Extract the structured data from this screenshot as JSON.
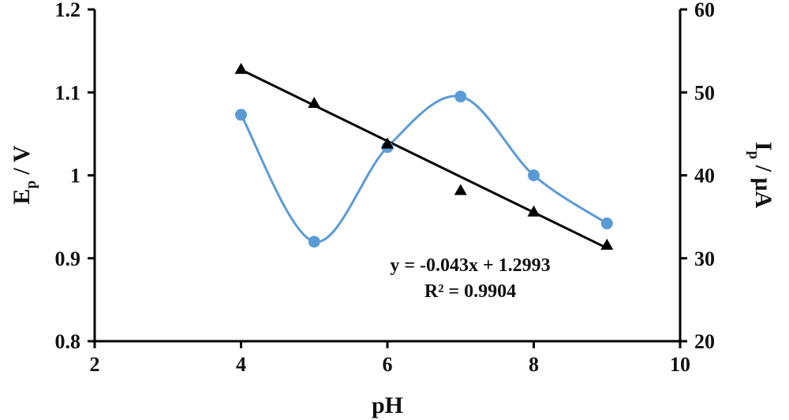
{
  "chart_data": {
    "type": "line",
    "xlabel": "pH",
    "ylabel_main": "E",
    "ylabel_sub": "p",
    "ylabel_unit": " / V",
    "y2label_main": "I",
    "y2label_sub": "p",
    "y2label_unit": " / μA",
    "xlim": [
      2,
      10
    ],
    "ylim": [
      0.8,
      1.2
    ],
    "y2lim": [
      20,
      60
    ],
    "x_ticks": [
      "2",
      "4",
      "6",
      "8",
      "10"
    ],
    "y_ticks": [
      "0.8",
      "0.9",
      "1",
      "1.1",
      "1.2"
    ],
    "y2_ticks": [
      "20",
      "30",
      "40",
      "50",
      "60"
    ],
    "grid": false,
    "series": [
      {
        "axis": "left",
        "marker": "triangle",
        "color": "#000000",
        "x": [
          4,
          5,
          6,
          7,
          8,
          9
        ],
        "y": [
          1.128,
          1.087,
          1.038,
          0.982,
          0.956,
          0.916
        ]
      },
      {
        "axis": "right",
        "marker": "circle",
        "color": "#5b9bd5",
        "smooth": true,
        "x": [
          4,
          5,
          6,
          7,
          8,
          9
        ],
        "y": [
          47.3,
          32.0,
          43.4,
          49.5,
          40.0,
          34.2
        ]
      }
    ],
    "trendline": {
      "series_index": 0,
      "slope": -0.043,
      "intercept": 1.2993,
      "x_range": [
        4,
        9
      ],
      "color": "#000000"
    },
    "annotations": {
      "equation": "y = -0.043x + 1.2993",
      "r2": "R² = 0.9904"
    }
  }
}
